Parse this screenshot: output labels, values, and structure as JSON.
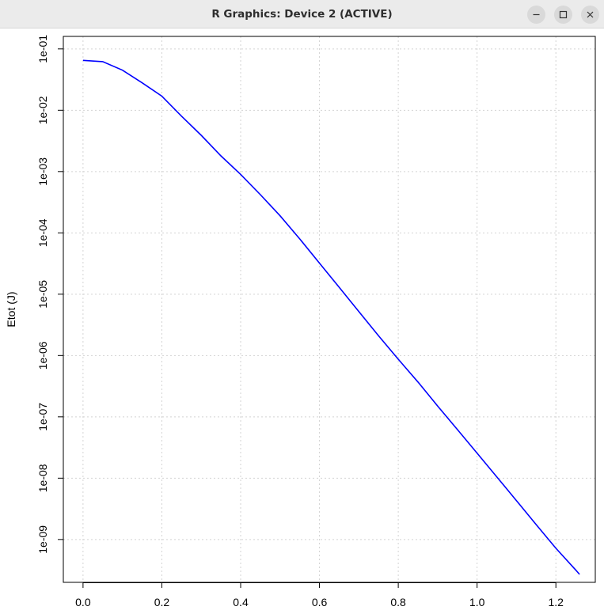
{
  "window": {
    "title": "R Graphics: Device 2 (ACTIVE)",
    "buttons": [
      "minimize-icon",
      "maximize-icon",
      "close-icon"
    ]
  },
  "chart_data": {
    "type": "line",
    "title": "",
    "xlabel": "",
    "ylabel": "Etot (J)",
    "log_y": true,
    "grid": true,
    "xlim": [
      -0.05,
      1.3
    ],
    "ylim": [
      2e-10,
      0.16
    ],
    "x_ticks": [
      0.0,
      0.2,
      0.4,
      0.6,
      0.8,
      1.0,
      1.2
    ],
    "x_tick_labels": [
      "0.0",
      "0.2",
      "0.4",
      "0.6",
      "0.8",
      "1.0",
      "1.2"
    ],
    "y_ticks": [
      0.1,
      0.01,
      0.001,
      0.0001,
      1e-05,
      1e-06,
      1e-07,
      1e-08,
      1e-09
    ],
    "y_tick_labels": [
      "1e-01",
      "1e-02",
      "1e-03",
      "1e-04",
      "1e-05",
      "1e-06",
      "1e-07",
      "1e-08",
      "1e-09"
    ],
    "series": [
      {
        "color": "#0000ff",
        "x": [
          0.0,
          0.05,
          0.1,
          0.15,
          0.2,
          0.25,
          0.3,
          0.35,
          0.4,
          0.45,
          0.5,
          0.55,
          0.6,
          0.65,
          0.7,
          0.75,
          0.8,
          0.85,
          0.9,
          0.95,
          1.0,
          1.05,
          1.1,
          1.15,
          1.2,
          1.25,
          1.26
        ],
        "y": [
          0.065,
          0.062,
          0.045,
          0.028,
          0.017,
          0.008,
          0.0039,
          0.0018,
          0.0009,
          0.00042,
          0.00019,
          7.95e-05,
          3.21e-05,
          1.3e-05,
          5.2e-06,
          2.1e-06,
          8.7e-07,
          3.7e-07,
          1.5e-07,
          6.2e-08,
          2.55e-08,
          1.05e-08,
          4.3e-09,
          1.75e-09,
          7.2e-10,
          3.2e-10,
          2.7e-10
        ]
      }
    ]
  }
}
